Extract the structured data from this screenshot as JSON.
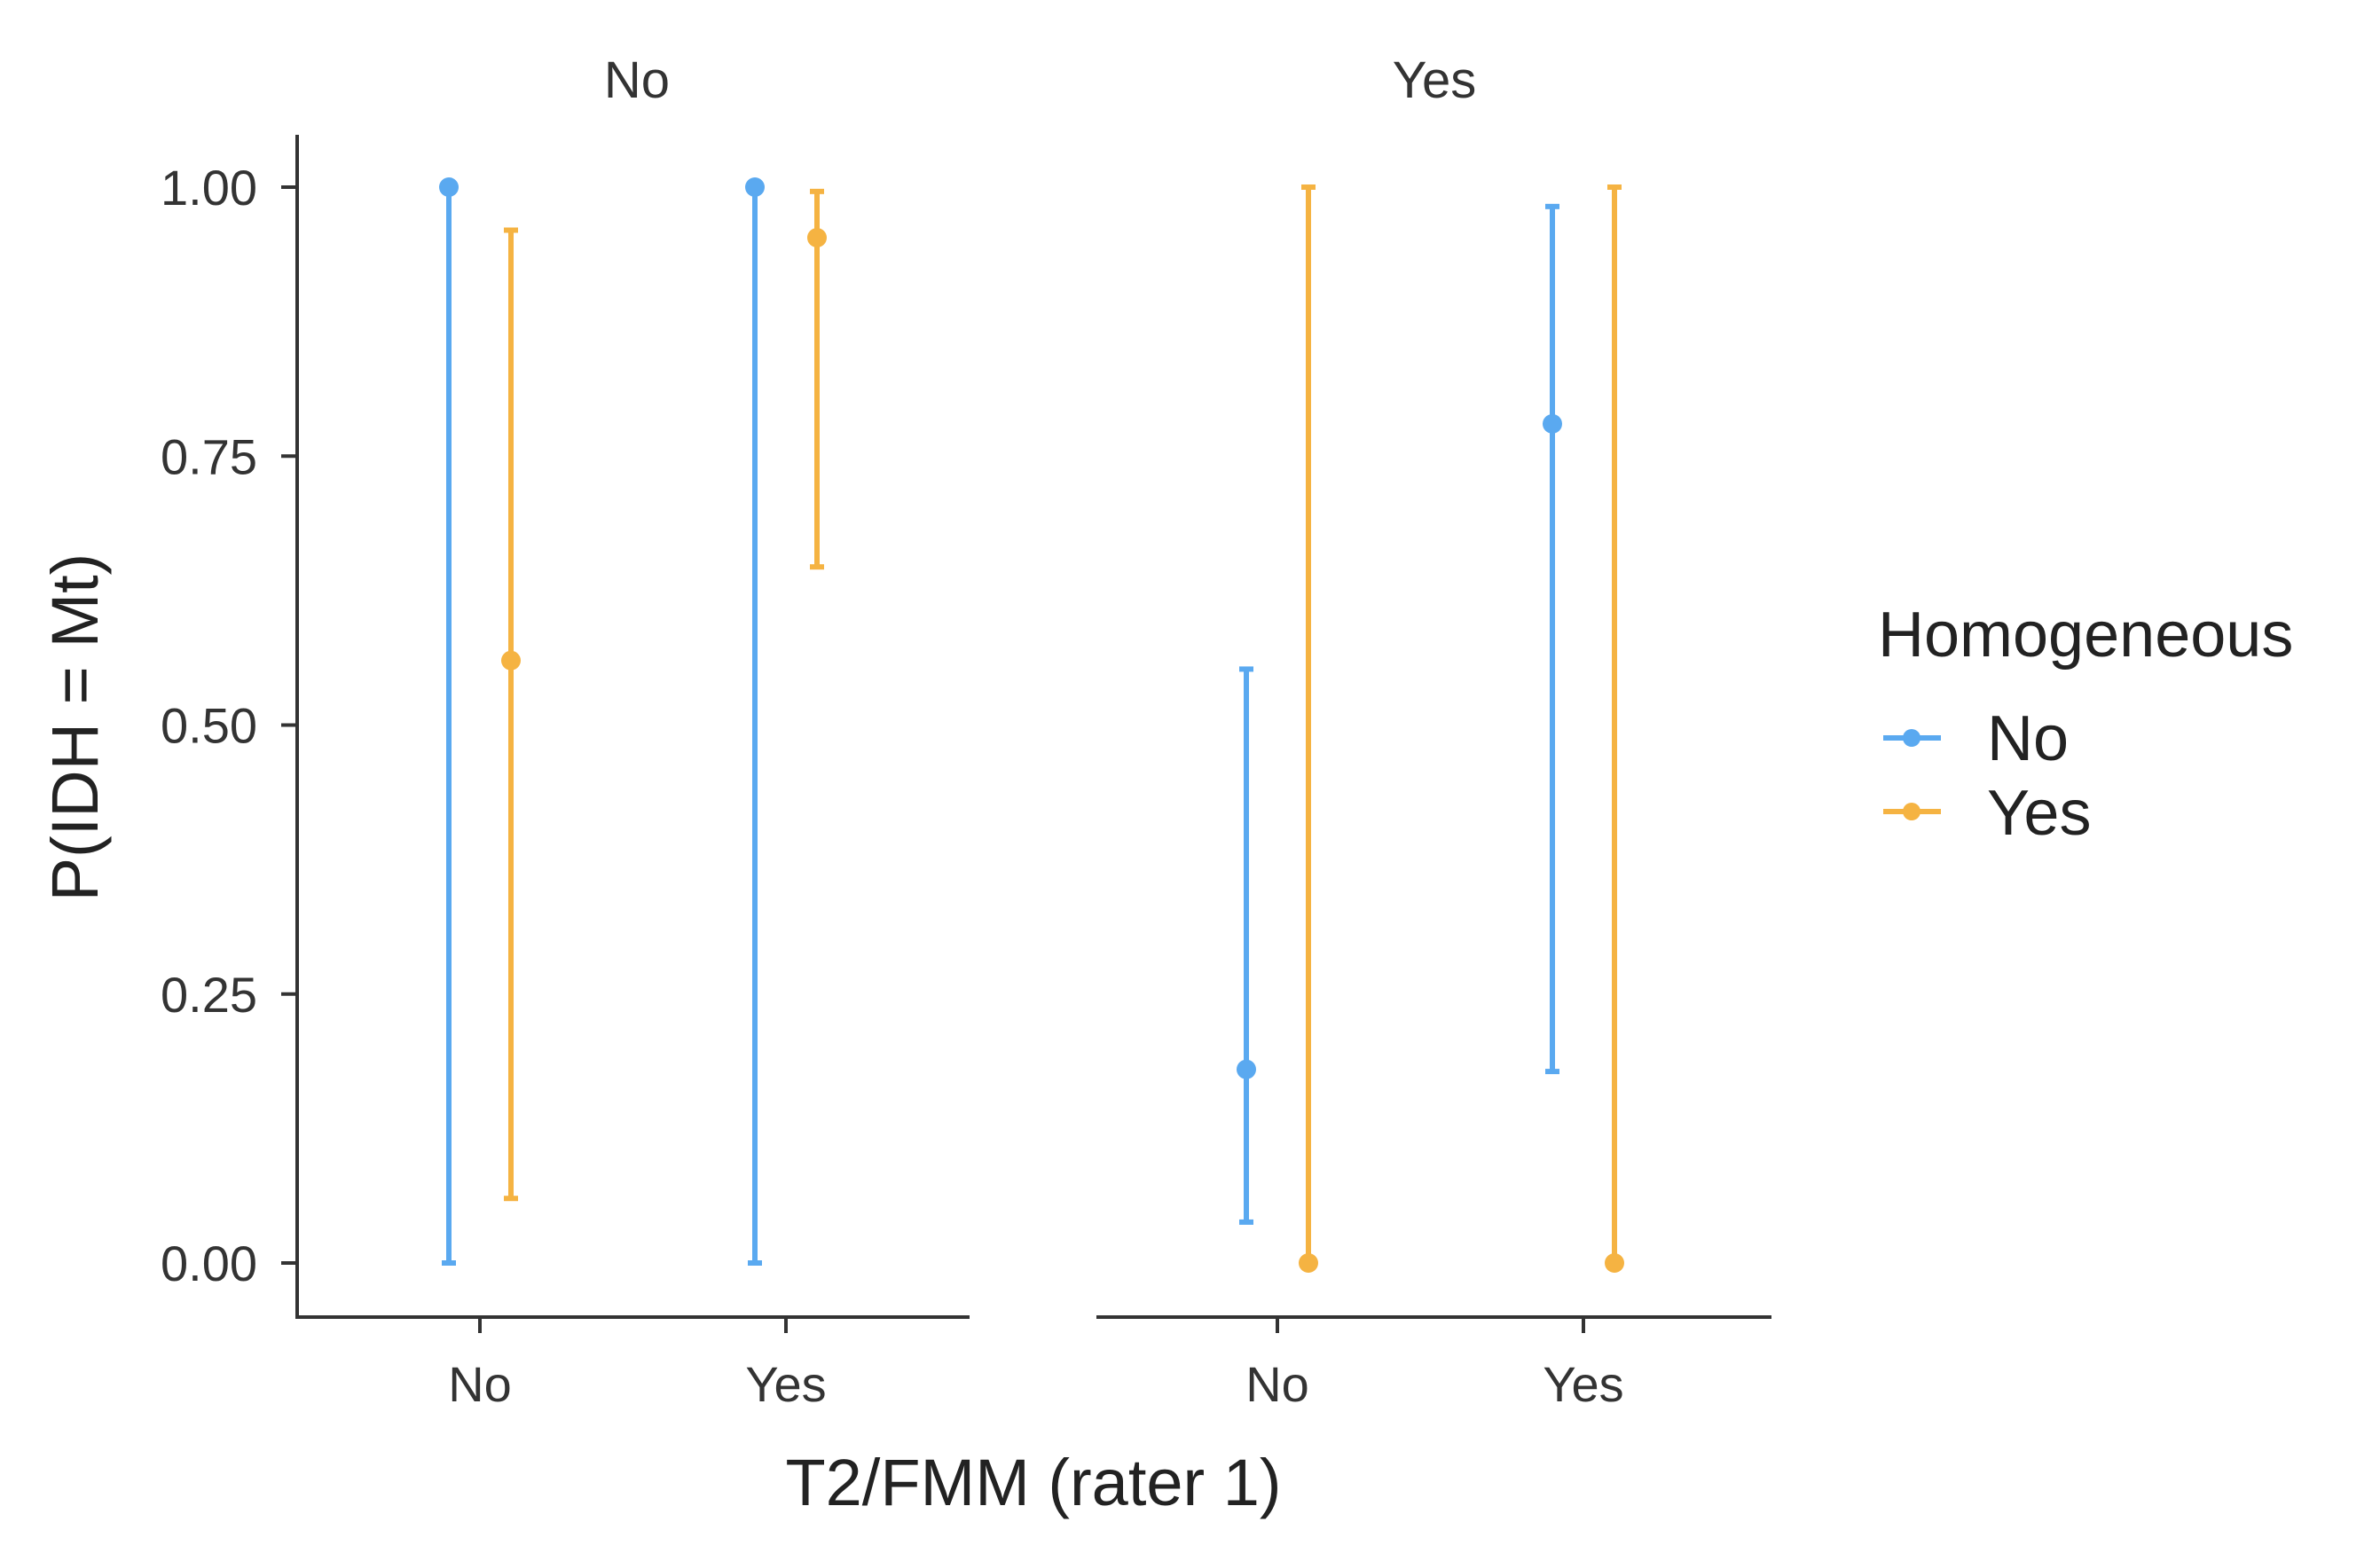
{
  "chart_data": {
    "type": "errorbar",
    "xlabel": "T2/FMM (rater 1)",
    "ylabel": "P(IDH = Mt)",
    "ylim": [
      0,
      1
    ],
    "y_ticks": [
      "0.00",
      "0.25",
      "0.50",
      "0.75",
      "1.00"
    ],
    "y_tick_values": [
      0,
      0.25,
      0.5,
      0.75,
      1.0
    ],
    "categories": [
      "No",
      "Yes"
    ],
    "grid": false,
    "legend": {
      "title": "Homogeneous",
      "placement": "right",
      "items": [
        {
          "label": "No",
          "color": "#5aa9f0"
        },
        {
          "label": "Yes",
          "color": "#f5b342"
        }
      ]
    },
    "panels": [
      {
        "strip": "No",
        "series": [
          {
            "name": "No",
            "color": "#5aa9f0",
            "points": [
              {
                "x": "No",
                "y": 1.0,
                "lower": 0.0,
                "upper": 1.0
              },
              {
                "x": "Yes",
                "y": 1.0,
                "lower": 0.0,
                "upper": 1.0
              }
            ]
          },
          {
            "name": "Yes",
            "color": "#f5b342",
            "points": [
              {
                "x": "No",
                "y": 0.56,
                "lower": 0.06,
                "upper": 0.96
              },
              {
                "x": "Yes",
                "y": 0.953,
                "lower": 0.647,
                "upper": 0.996
              }
            ]
          }
        ]
      },
      {
        "strip": "Yes",
        "series": [
          {
            "name": "No",
            "color": "#5aa9f0",
            "points": [
              {
                "x": "No",
                "y": 0.18,
                "lower": 0.038,
                "upper": 0.552
              },
              {
                "x": "Yes",
                "y": 0.78,
                "lower": 0.178,
                "upper": 0.982
              }
            ]
          },
          {
            "name": "Yes",
            "color": "#f5b342",
            "points": [
              {
                "x": "No",
                "y": 0.0,
                "lower": 0.0,
                "upper": 1.0
              },
              {
                "x": "Yes",
                "y": 0.0,
                "lower": 0.0,
                "upper": 1.0
              }
            ]
          }
        ]
      }
    ]
  }
}
